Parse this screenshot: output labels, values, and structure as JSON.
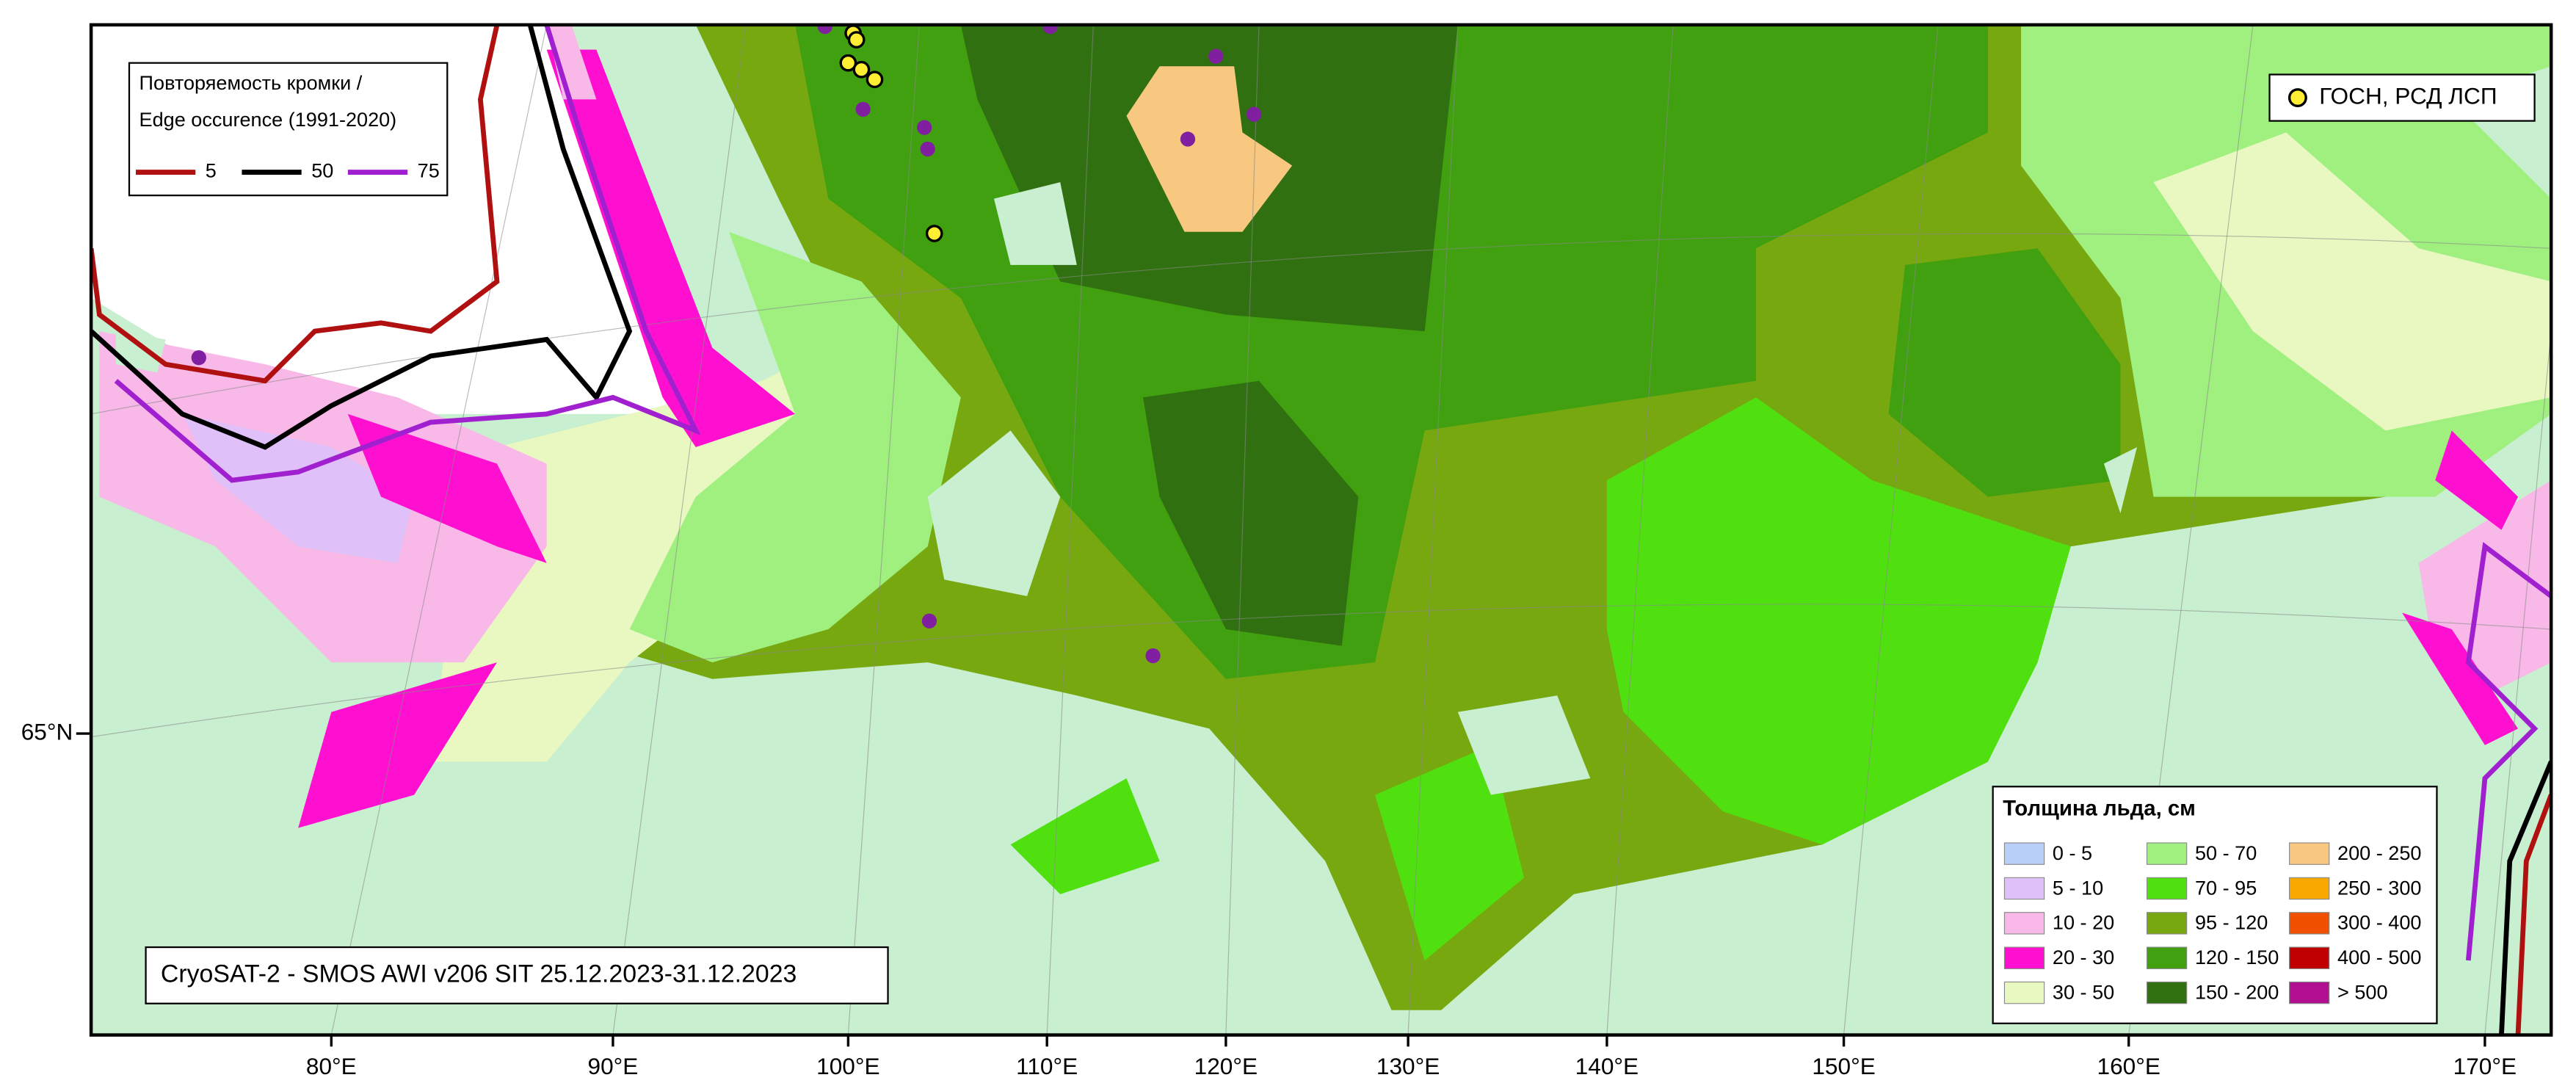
{
  "map": {
    "title": "CryoSAT-2 - SMOS AWI v206 SIT 25.12.2023-31.12.2023",
    "edge_legend": {
      "title_lines": [
        "Повторяемость кромки /",
        "Edge occurence (1991-2020)"
      ],
      "items": [
        {
          "label": "5",
          "color": "#b01010"
        },
        {
          "label": "50",
          "color": "#000000"
        },
        {
          "label": "75",
          "color": "#a020d0"
        }
      ]
    },
    "station_legend": {
      "label": "ГОСН, РСД ЛСП",
      "color": "#ffee33"
    },
    "thickness_legend": {
      "title": "Толщина льда, см",
      "items": [
        {
          "label": "0 - 5",
          "color": "#b8d0f8"
        },
        {
          "label": "5 - 10",
          "color": "#e0c0f8"
        },
        {
          "label": "10 - 20",
          "color": "#f8b8e8"
        },
        {
          "label": "20 - 30",
          "color": "#ff10d0"
        },
        {
          "label": "30 - 50",
          "color": "#e8f8c0"
        },
        {
          "label": "50 - 70",
          "color": "#a0f080"
        },
        {
          "label": "70 - 95",
          "color": "#50e010"
        },
        {
          "label": "95 - 120",
          "color": "#78a810"
        },
        {
          "label": "120 - 150",
          "color": "#40a010"
        },
        {
          "label": "150 - 200",
          "color": "#307010"
        },
        {
          "label": "200 - 250",
          "color": "#f8c880"
        },
        {
          "label": "250 - 300",
          "color": "#f8a800"
        },
        {
          "label": "300 - 400",
          "color": "#f05000"
        },
        {
          "label": "400 - 500",
          "color": "#c00000"
        },
        {
          "label": "> 500",
          "color": "#b01090"
        }
      ]
    },
    "lon_labels": [
      "80°E",
      "90°E",
      "100°E",
      "110°E",
      "120°E",
      "130°E",
      "140°E",
      "150°E",
      "160°E",
      "170°E"
    ],
    "lat_labels": [
      "65°N"
    ]
  }
}
